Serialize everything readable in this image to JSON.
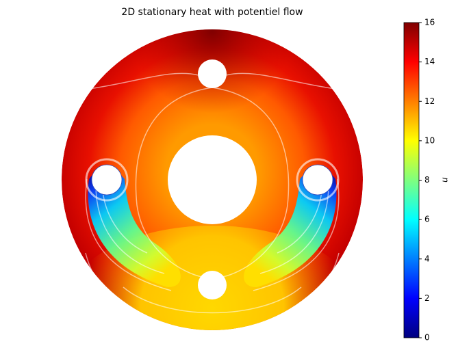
{
  "chart_data": {
    "type": "contour",
    "title": "2D stationary heat with potentiel flow",
    "colorbar_label": "u",
    "colormap": "jet",
    "ylim": [
      0,
      16
    ],
    "yticks": [
      0,
      2,
      4,
      6,
      8,
      10,
      12,
      14,
      16
    ]
  }
}
